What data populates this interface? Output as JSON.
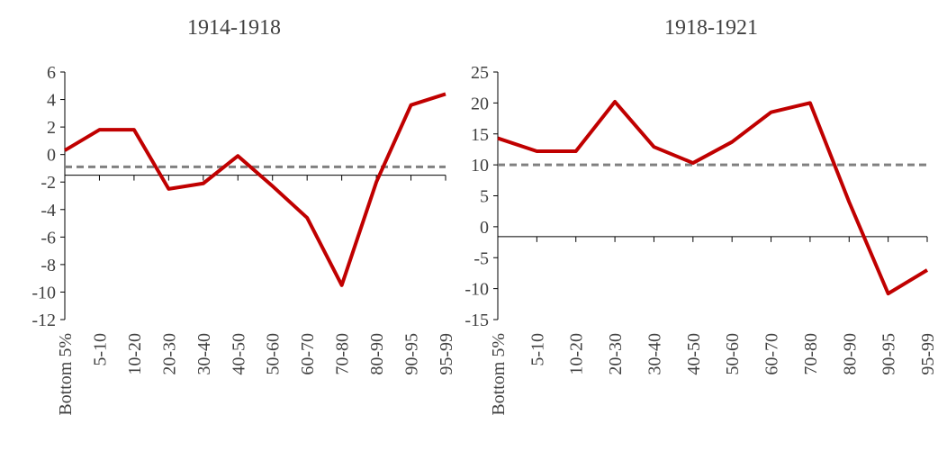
{
  "chart_data": [
    {
      "type": "line",
      "title": "1914-1918",
      "categories": [
        "Bottom 5%",
        "5-10",
        "10-20",
        "20-30",
        "30-40",
        "40-50",
        "50-60",
        "60-70",
        "70-80",
        "80-90",
        "90-95",
        "95-99"
      ],
      "values": [
        0.3,
        1.8,
        1.8,
        -2.5,
        -2.1,
        -0.1,
        -2.3,
        -4.6,
        -9.5,
        -2.0,
        3.6,
        4.4
      ],
      "color": "#c00000",
      "reference_line": -0.9,
      "reference_color": "#808080",
      "x_axis_crosses": -1.5,
      "ylim": [
        -12,
        6
      ],
      "yticks": [
        -12,
        -10,
        -8,
        -6,
        -4,
        -2,
        0,
        2,
        4,
        6
      ]
    },
    {
      "type": "line",
      "title": "1918-1921",
      "categories": [
        "Bottom 5%",
        "5-10",
        "10-20",
        "20-30",
        "30-40",
        "40-50",
        "50-60",
        "60-70",
        "70-80",
        "80-90",
        "90-95",
        "95-99"
      ],
      "values": [
        14.3,
        12.2,
        12.2,
        20.2,
        12.9,
        10.3,
        13.7,
        18.5,
        20.0,
        4.0,
        -10.8,
        -7.0
      ],
      "color": "#c00000",
      "reference_line": 10.0,
      "reference_color": "#808080",
      "x_axis_crosses": -1.6,
      "ylim": [
        -15,
        25
      ],
      "yticks": [
        -15,
        -10,
        -5,
        0,
        5,
        10,
        15,
        20,
        25
      ]
    }
  ]
}
